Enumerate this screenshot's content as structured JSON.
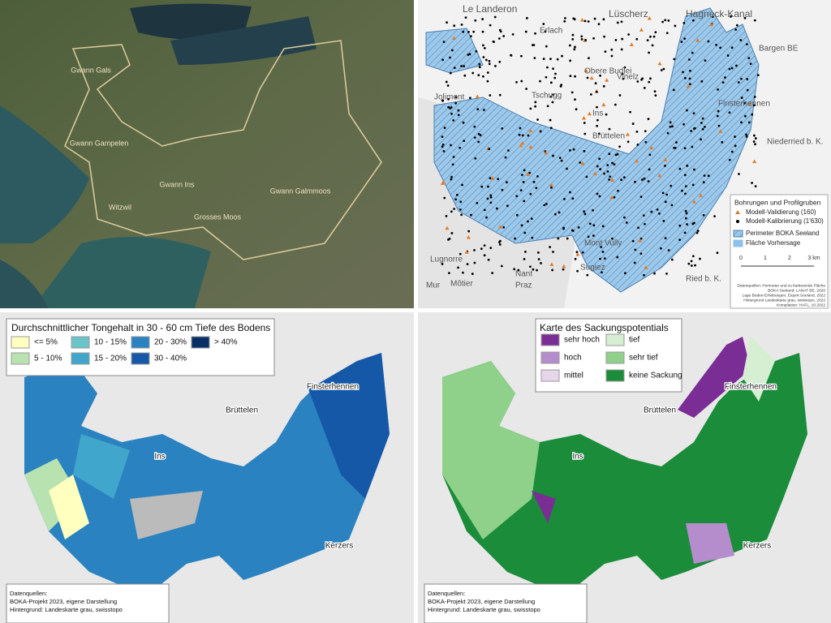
{
  "satellite": {
    "labels": [
      "Gwann Gals",
      "Gwann Gampelen",
      "Gwann Ins",
      "Witzwil",
      "Grosses Moos",
      "Gwann Galmmoos"
    ]
  },
  "overview": {
    "places": [
      "Le Landeron",
      "Lüscherz",
      "Hagneck-Kanal",
      "Erlach",
      "Bargen BE",
      "Vinelz",
      "Obere Budlei",
      "Jolimont",
      "Tschugg",
      "Ins",
      "Brüttelen",
      "Finsterhennen",
      "Niederried b. K.",
      "Mont Vully",
      "Lugnorre",
      "Nant",
      "Sugiez",
      "Ried b. K.",
      "Môtier",
      "Praz",
      "Mur"
    ],
    "legend": {
      "title": "Bohrungen und Profilgruben",
      "items": [
        {
          "label": "Modell-Validierung (160)",
          "color": "#e07b28"
        },
        {
          "label": "Modell-Kalibrierung (1'630)",
          "color": "#000000"
        },
        {
          "label": "Perimeter BOKA Seeland",
          "color": "#4a7fb0"
        },
        {
          "label": "Fläche Vorhersage",
          "color": "#8fc0e8"
        }
      ]
    },
    "scale": [
      "0",
      "1",
      "2",
      "3 km"
    ],
    "sources": [
      "Datenquellen: Perimeter und zu kartierende Fläche",
      "BOKA Seeland: LANAT BE, 2020",
      "Lage Boden-Erhebungen, Expert Seeland, 2022",
      "Hintergrund Landeskarte grau, swisstopo, 2022",
      "Kompilation: HAFL, 10.2022"
    ]
  },
  "clay": {
    "title": "Durchschnittlicher Tongehalt in 30 - 60 cm Tiefe des Bodens",
    "legend": [
      {
        "label": "<= 5%",
        "color": "#ffffc0"
      },
      {
        "label": "5 - 10%",
        "color": "#b8e3b0"
      },
      {
        "label": "10 - 15%",
        "color": "#6cc3c8"
      },
      {
        "label": "15 - 20%",
        "color": "#41a6cc"
      },
      {
        "label": "20 - 30%",
        "color": "#2b82c0"
      },
      {
        "label": "30 - 40%",
        "color": "#1558a8"
      },
      {
        "label": "> 40%",
        "color": "#0a2f66"
      }
    ],
    "places": [
      "Finsterhennen",
      "Brüttelen",
      "Ins",
      "Kerzers"
    ],
    "sources": [
      "Datenquellen:",
      "BOKA-Projekt 2023, eigene Darstellung",
      "Hintergrund: Landeskarte grau, swisstopo"
    ]
  },
  "subsidence": {
    "title": "Karte des Sackungspotentials",
    "legend": [
      {
        "label": "sehr hoch",
        "color": "#7b2d96"
      },
      {
        "label": "hoch",
        "color": "#b58ccc"
      },
      {
        "label": "mittel",
        "color": "#e6d6ea"
      },
      {
        "label": "tief",
        "color": "#d6eed2"
      },
      {
        "label": "sehr tief",
        "color": "#8fd08a"
      },
      {
        "label": "keine Sackung",
        "color": "#1a8c3a"
      }
    ],
    "places": [
      "Finsterhennen",
      "Brüttelen",
      "Ins",
      "Kerzers"
    ],
    "sources": [
      "Datenquellen:",
      "BOKA-Projekt 2023, eigene Darstellung",
      "Hintergrund: Landeskarte grau, swisstopo"
    ]
  }
}
